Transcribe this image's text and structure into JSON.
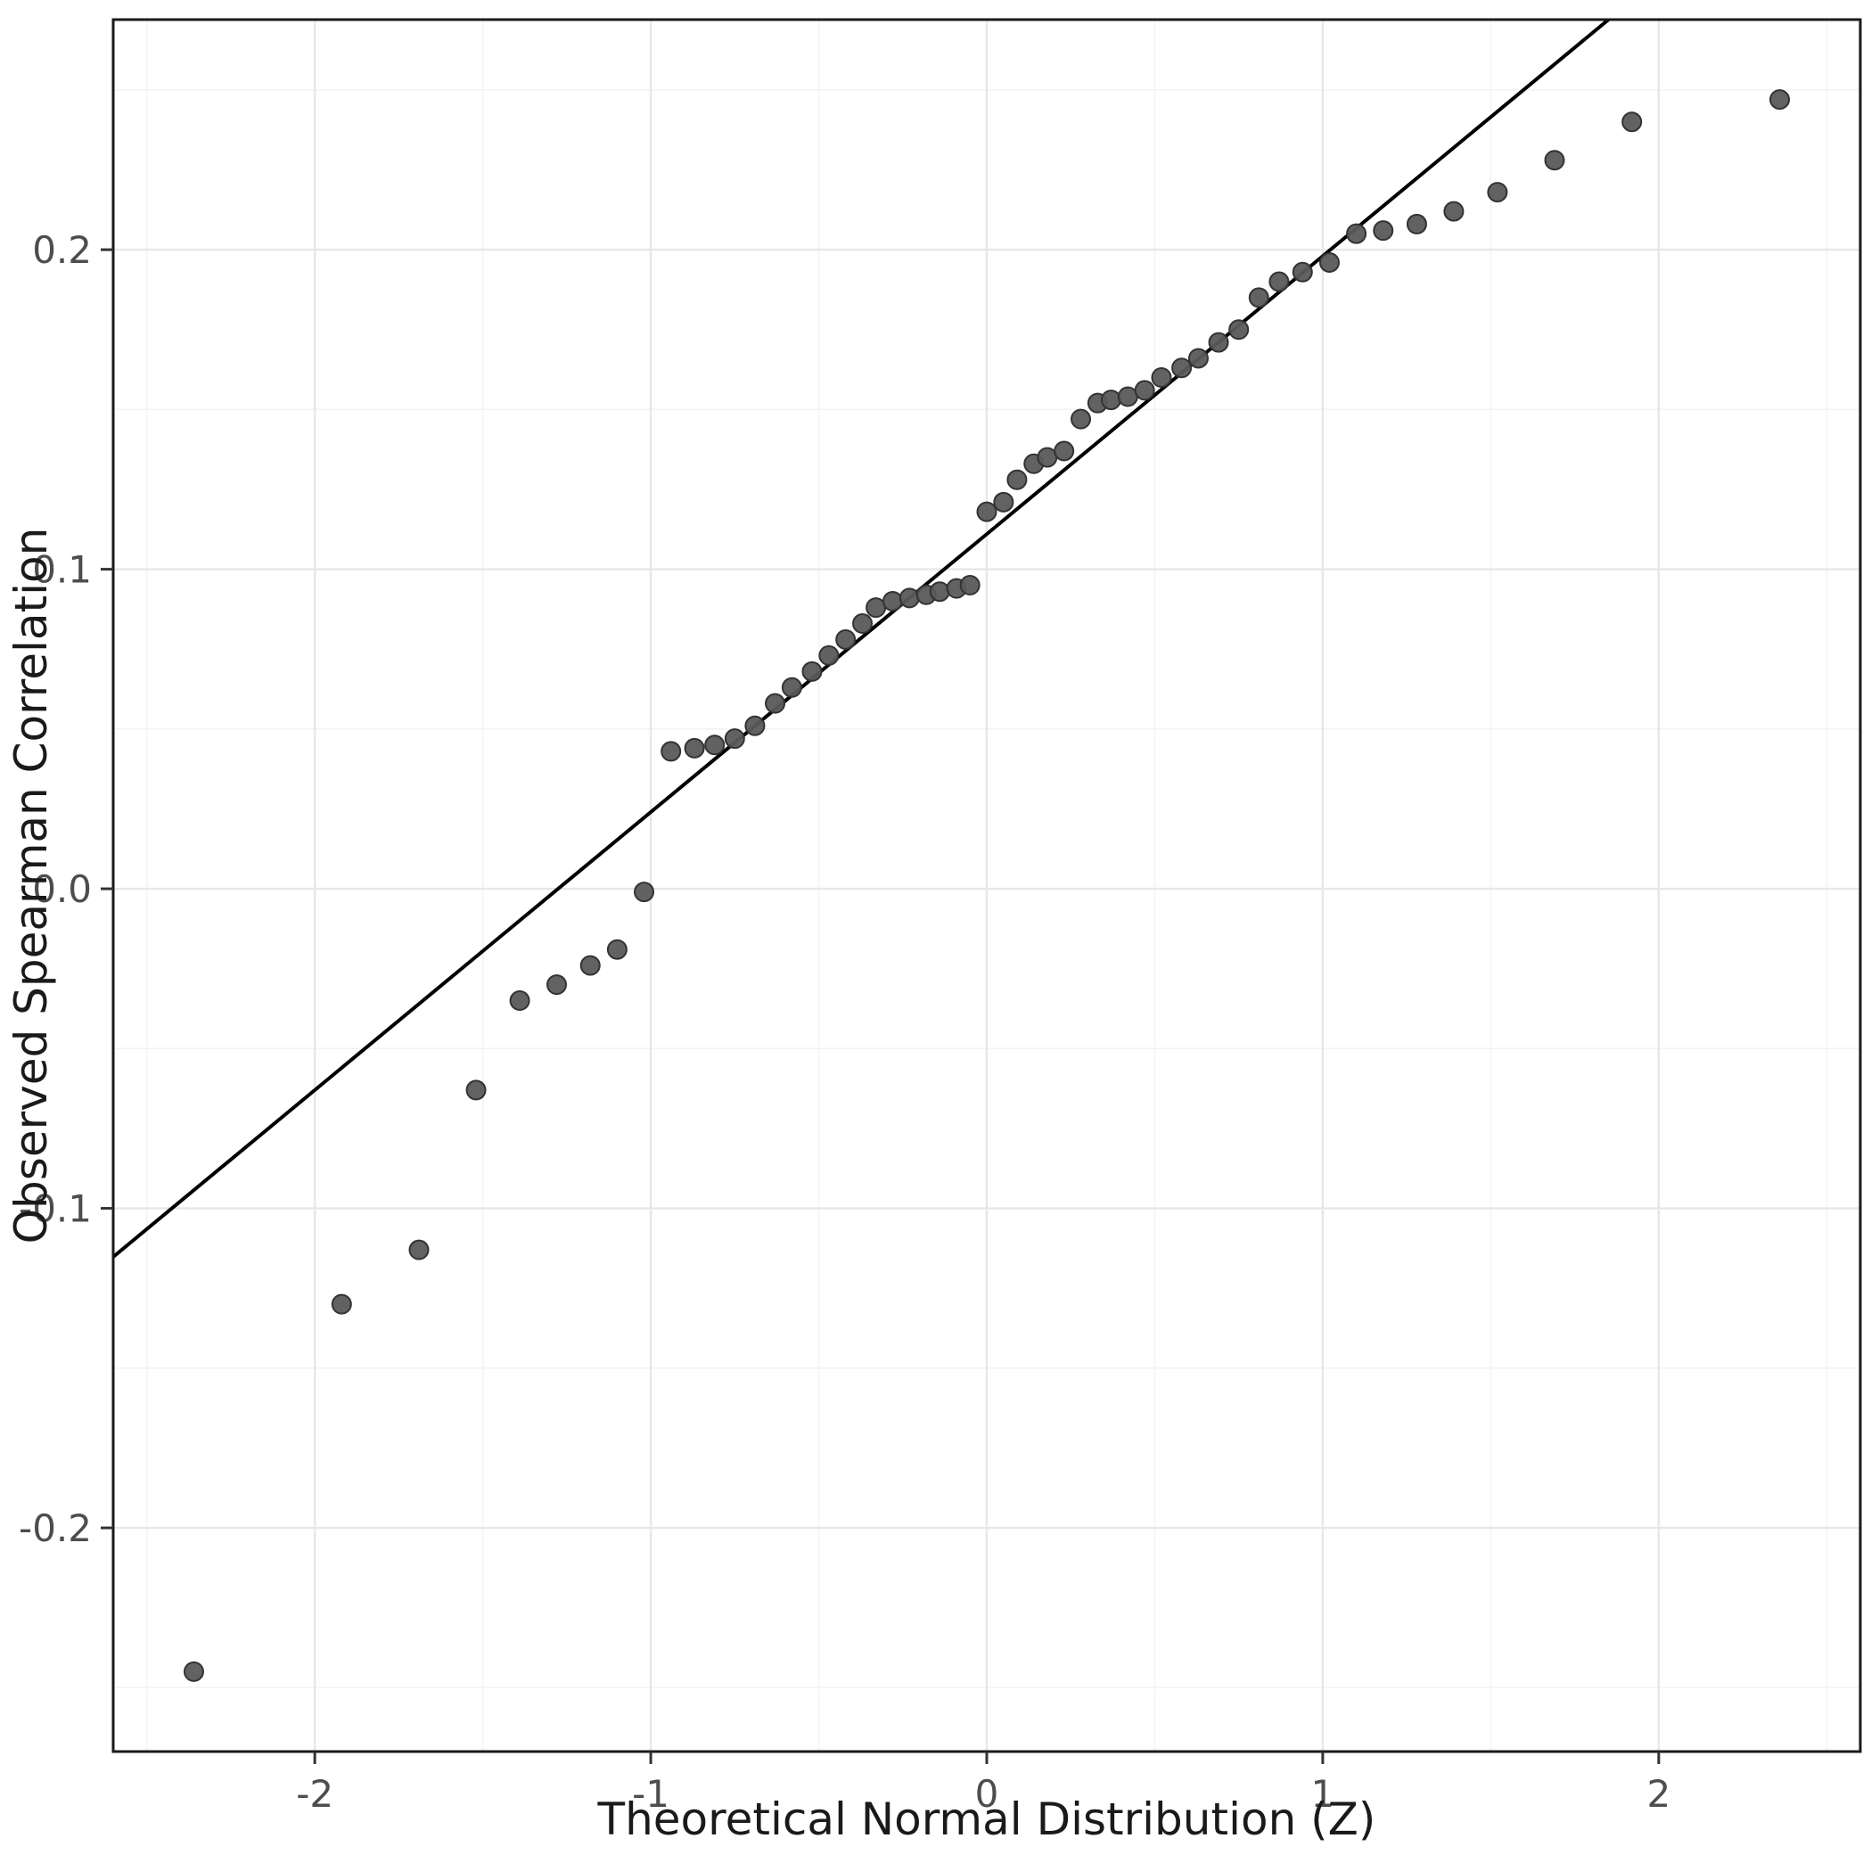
{
  "figure": {
    "background": "#ffffff"
  },
  "chart_data": {
    "type": "scatter",
    "title": "",
    "xlabel": "Theoretical Normal Distribution (Z)",
    "ylabel": "Observed Spearman Correlation",
    "xlim": [
      -2.6,
      2.6
    ],
    "ylim": [
      -0.27,
      0.272
    ],
    "x_ticks": [
      -2,
      -1,
      0,
      1,
      2
    ],
    "y_ticks": [
      -0.2,
      -0.1,
      0.0,
      0.1,
      0.2
    ],
    "x_tick_labels": [
      "-2",
      "-1",
      "0",
      "1",
      "2"
    ],
    "y_tick_labels": [
      "-0.2",
      "-0.1",
      "0.0",
      "0.1",
      "0.2"
    ],
    "grid": "on",
    "legend": "none",
    "x": [
      -2.36,
      -1.92,
      -1.69,
      -1.52,
      -1.39,
      -1.28,
      -1.18,
      -1.1,
      -1.02,
      -0.94,
      -0.87,
      -0.81,
      -0.75,
      -0.69,
      -0.63,
      -0.58,
      -0.52,
      -0.47,
      -0.42,
      -0.37,
      -0.33,
      -0.28,
      -0.23,
      -0.18,
      -0.14,
      -0.09,
      -0.05,
      0.0,
      0.05,
      0.09,
      0.14,
      0.18,
      0.23,
      0.28,
      0.33,
      0.37,
      0.42,
      0.47,
      0.52,
      0.58,
      0.63,
      0.69,
      0.75,
      0.81,
      0.87,
      0.94,
      1.02,
      1.1,
      1.18,
      1.28,
      1.39,
      1.52,
      1.69,
      1.92,
      2.36
    ],
    "y": [
      -0.245,
      -0.13,
      -0.113,
      -0.063,
      -0.035,
      -0.03,
      -0.024,
      -0.019,
      -0.001,
      0.043,
      0.044,
      0.045,
      0.047,
      0.051,
      0.058,
      0.063,
      0.068,
      0.073,
      0.078,
      0.083,
      0.088,
      0.09,
      0.091,
      0.092,
      0.093,
      0.094,
      0.095,
      0.118,
      0.121,
      0.128,
      0.133,
      0.135,
      0.137,
      0.147,
      0.152,
      0.153,
      0.154,
      0.156,
      0.16,
      0.163,
      0.166,
      0.171,
      0.175,
      0.185,
      0.19,
      0.193,
      0.196,
      0.205,
      0.206,
      0.208,
      0.212,
      0.218,
      0.228,
      0.24,
      0.247
    ],
    "reference_line": {
      "slope": 0.087,
      "intercept": 0.111
    },
    "colors": {
      "point_fill": "#5a5a5a",
      "point_stroke": "#333333",
      "reference_line": "#000000",
      "grid_major": "#e7e7e7",
      "grid_minor": "#f3f3f3",
      "panel_border": "#1a1a1a",
      "tick_mark": "#333333",
      "tick_label": "#4d4d4d",
      "axis_title": "#1a1a1a",
      "background": "#ffffff"
    }
  }
}
